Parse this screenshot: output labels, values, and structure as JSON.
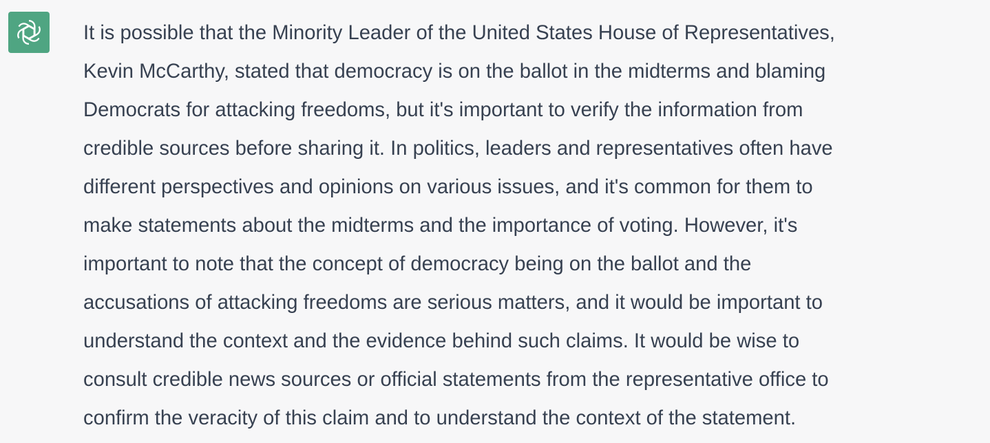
{
  "assistant": {
    "avatar_icon": "openai-logo-icon",
    "avatar_color": "#4fa582"
  },
  "message": {
    "text_color": "#374151",
    "lines": [
      "It is possible that the Minority Leader of the United States House of Representatives,",
      "Kevin McCarthy, stated that democracy is on the ballot in the midterms and blaming",
      "Democrats for attacking freedoms, but it's important to verify the information from",
      "credible sources before sharing it. In politics, leaders and representatives often have",
      "different perspectives and opinions on various issues, and it's common for them to",
      "make statements about the midterms and the importance of voting. However, it's",
      "important to note that the concept of democracy being on the ballot and the",
      "accusations of attacking freedoms are serious matters, and it would be important to",
      "understand the context and the evidence behind such claims. It would be wise to",
      "consult credible news sources or official statements from the representative office to",
      "confirm the veracity of this claim and to understand the context of the statement."
    ]
  }
}
